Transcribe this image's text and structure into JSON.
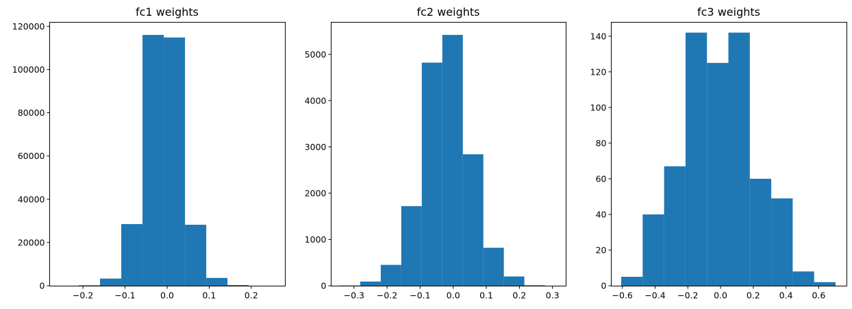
{
  "chart_data": [
    {
      "type": "bar",
      "title": "fc1 weights",
      "xlabel": "",
      "ylabel": "",
      "xlim": [
        -0.28,
        0.28
      ],
      "ylim": [
        0,
        122000
      ],
      "bin_edges": [
        -0.21,
        -0.1595,
        -0.109,
        -0.0585,
        -0.008,
        0.0425,
        0.093,
        0.1435,
        0.194,
        0.2445,
        0.295
      ],
      "values": [
        200,
        3300,
        28500,
        116000,
        114800,
        28200,
        3600,
        300,
        0,
        0
      ],
      "xticks": [
        -0.2,
        -0.1,
        0.0,
        0.1,
        0.2
      ],
      "xtick_labels": [
        "−0.2",
        "−0.1",
        "0.0",
        "0.1",
        "0.2"
      ],
      "yticks": [
        0,
        20000,
        40000,
        60000,
        80000,
        100000,
        120000
      ],
      "ytick_labels": [
        "0",
        "20000",
        "40000",
        "60000",
        "80000",
        "100000",
        "120000"
      ],
      "color": "#1f77b4"
    },
    {
      "type": "bar",
      "title": "fc2 weights",
      "xlabel": "",
      "ylabel": "",
      "xlim": [
        -0.37,
        0.34
      ],
      "ylim": [
        0,
        5700
      ],
      "bin_edges": [
        -0.343,
        -0.281,
        -0.219,
        -0.157,
        -0.095,
        -0.033,
        0.029,
        0.091,
        0.153,
        0.215,
        0.277
      ],
      "values": [
        5,
        90,
        450,
        1720,
        4820,
        5420,
        2840,
        820,
        200,
        10
      ],
      "xticks": [
        -0.3,
        -0.2,
        -0.1,
        0.0,
        0.1,
        0.2,
        0.3
      ],
      "xtick_labels": [
        "−0.3",
        "−0.2",
        "−0.1",
        "0.0",
        "0.1",
        "0.2",
        "0.3"
      ],
      "yticks": [
        0,
        1000,
        2000,
        3000,
        4000,
        5000
      ],
      "ytick_labels": [
        "0",
        "1000",
        "2000",
        "3000",
        "4000",
        "5000"
      ],
      "color": "#1f77b4"
    },
    {
      "type": "bar",
      "title": "fc3 weights",
      "xlabel": "",
      "ylabel": "",
      "xlim": [
        -0.67,
        0.77
      ],
      "ylim": [
        0,
        148
      ],
      "bin_edges": [
        -0.607,
        -0.476,
        -0.345,
        -0.214,
        -0.083,
        0.048,
        0.179,
        0.31,
        0.441,
        0.572,
        0.703
      ],
      "values": [
        5,
        40,
        67,
        142,
        125,
        142,
        60,
        49,
        8,
        2
      ],
      "xticks": [
        -0.6,
        -0.4,
        -0.2,
        0.0,
        0.2,
        0.4,
        0.6
      ],
      "xtick_labels": [
        "−0.6",
        "−0.4",
        "−0.2",
        "0.0",
        "0.2",
        "0.4",
        "0.6"
      ],
      "yticks": [
        0,
        20,
        40,
        60,
        80,
        100,
        120,
        140
      ],
      "ytick_labels": [
        "0",
        "20",
        "40",
        "60",
        "80",
        "100",
        "120",
        "140"
      ],
      "color": "#1f77b4"
    }
  ]
}
